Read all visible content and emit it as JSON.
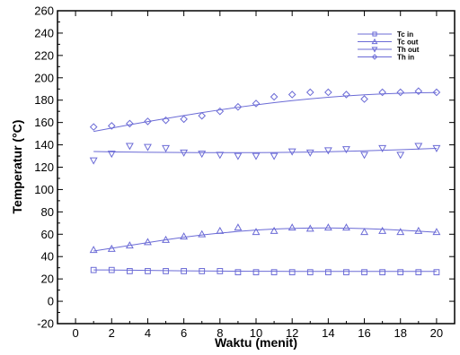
{
  "chart_data": {
    "type": "scatter",
    "title": "",
    "xlabel": "Waktu (menit)",
    "ylabel": "Temperatur (°C)",
    "xlim": [
      -1,
      21
    ],
    "ylim": [
      -20,
      260
    ],
    "xticks": [
      0,
      2,
      4,
      6,
      8,
      10,
      12,
      14,
      16,
      18,
      20
    ],
    "yticks": [
      -20,
      0,
      20,
      40,
      60,
      80,
      100,
      120,
      140,
      160,
      180,
      200,
      220,
      240,
      260
    ],
    "grid": false,
    "legend": "top-right",
    "series_color": "#6b6bd6",
    "x": [
      1,
      2,
      3,
      4,
      5,
      6,
      7,
      8,
      9,
      10,
      11,
      12,
      13,
      14,
      15,
      16,
      17,
      18,
      19,
      20
    ],
    "series": [
      {
        "name": "Tc in",
        "marker": "square",
        "values": [
          28,
          28,
          27,
          27,
          27,
          27,
          27,
          27,
          26,
          26,
          26,
          26,
          26,
          26,
          26,
          26,
          26,
          26,
          26,
          26
        ],
        "fit": [
          28,
          28,
          27.8,
          27.6,
          27.4,
          27.2,
          27.1,
          27,
          26.9,
          26.8,
          26.8,
          26.7,
          26.7,
          26.7,
          26.7,
          26.7,
          26.7,
          26.7,
          26.7,
          26.7
        ]
      },
      {
        "name": "Tc out",
        "marker": "triangle-up",
        "values": [
          46,
          47,
          50,
          53,
          55,
          58,
          60,
          63,
          66,
          62,
          63,
          66,
          65,
          66,
          66,
          62,
          63,
          62,
          63,
          62
        ],
        "fit": [
          45,
          47.5,
          50,
          52.5,
          55,
          57.3,
          59.3,
          61,
          62.5,
          63.7,
          64.6,
          65.2,
          65.5,
          65.6,
          65.4,
          65,
          64.4,
          63.6,
          62.7,
          61.7
        ]
      },
      {
        "name": "Th out",
        "marker": "triangle-down",
        "values": [
          126,
          132,
          139,
          138,
          137,
          133,
          132,
          131,
          130,
          130,
          130,
          134,
          133,
          135,
          136,
          131,
          137,
          131,
          139,
          137
        ],
        "fit": [
          134,
          133.7,
          133.5,
          133.3,
          133.2,
          133.1,
          133,
          133,
          133,
          133,
          133.1,
          133.3,
          133.5,
          133.8,
          134.2,
          134.6,
          135.1,
          135.6,
          136.2,
          136.8
        ]
      },
      {
        "name": "Th in",
        "marker": "diamond",
        "values": [
          156,
          157,
          159,
          161,
          162,
          163,
          166,
          170,
          174,
          177,
          183,
          185,
          187,
          187,
          185,
          181,
          187,
          187,
          188,
          187
        ],
        "fit": [
          152,
          155,
          158,
          160.8,
          163.5,
          166.2,
          168.8,
          171.3,
          173.6,
          175.8,
          177.8,
          179.6,
          181.2,
          182.6,
          183.8,
          184.8,
          185.6,
          186.2,
          186.6,
          186.8
        ]
      }
    ]
  }
}
